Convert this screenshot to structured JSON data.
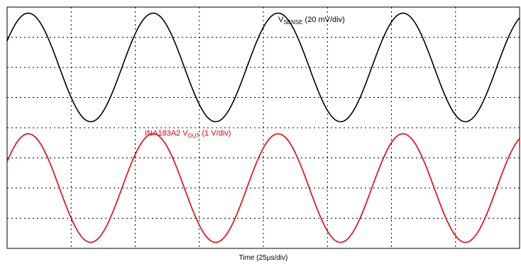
{
  "chart_data": {
    "type": "line",
    "grid": true,
    "divisions": {
      "x": 8,
      "y": 8
    },
    "x_axis_label": "Time (25µs/div)",
    "x_units_per_div": "25 µs",
    "series": [
      {
        "name_parts": {
          "base": "V",
          "sub": "SENSE",
          "rest": " (20 mV/div)"
        },
        "color": "#000000",
        "waveform": "sine",
        "period_div": 1.95,
        "peak_to_peak_div": 3.6,
        "center_div": 6.0,
        "first_peak_time_div": 0.33
      },
      {
        "name_parts": {
          "base": "INA183A2 V",
          "sub": "OUT",
          "rest": " (1 V/div)"
        },
        "color": "#e8000b",
        "waveform": "sine",
        "period_div": 1.95,
        "peak_to_peak_div": 3.6,
        "center_div": 2.0,
        "first_peak_time_div": 0.33
      }
    ]
  }
}
